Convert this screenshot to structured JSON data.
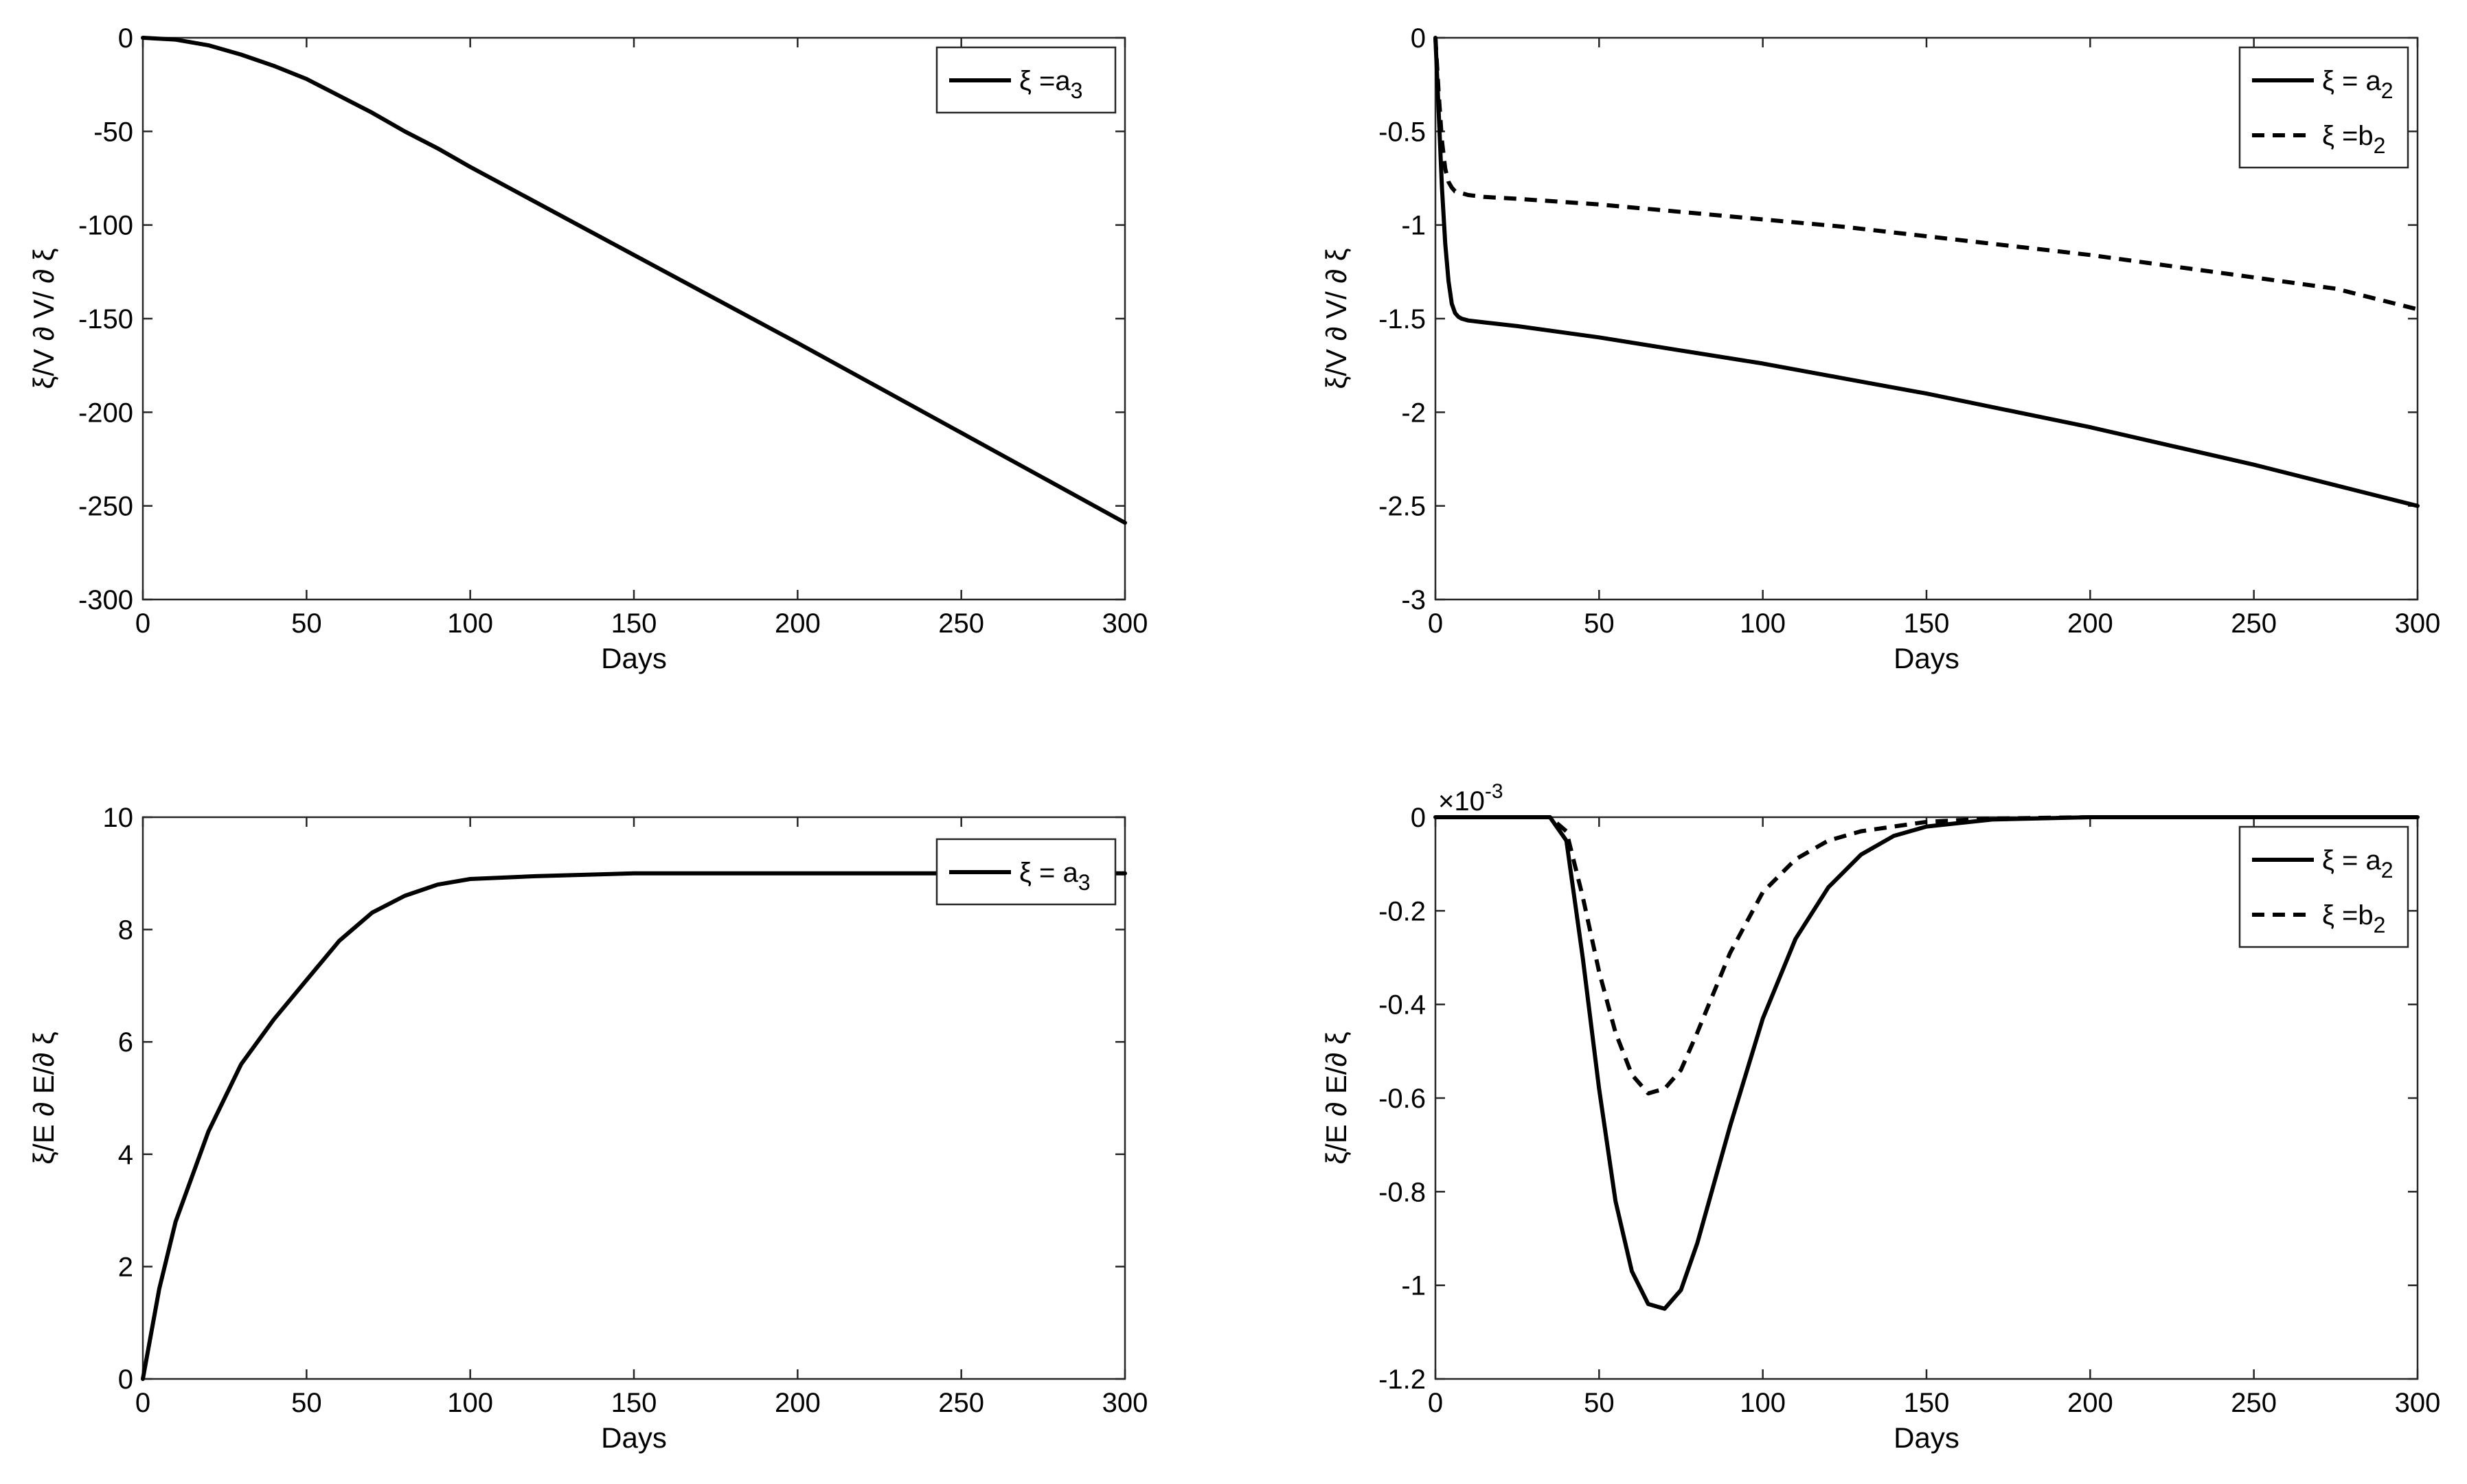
{
  "chart_data": [
    {
      "type": "line",
      "panel": "top-left",
      "title": "",
      "xlabel": "Days",
      "ylabel": "ξ/V ∂ V/ ∂ ξ",
      "xlim": [
        0,
        300
      ],
      "ylim": [
        -300,
        0
      ],
      "xticks": [
        0,
        50,
        100,
        150,
        200,
        250,
        300
      ],
      "yticks": [
        -300,
        -250,
        -200,
        -150,
        -100,
        -50,
        0
      ],
      "legend_position": "top-right",
      "series": [
        {
          "name": "ξ =a3",
          "legend_sym": "ξ =a",
          "legend_sub": "3",
          "style": "solid",
          "x": [
            0,
            10,
            20,
            30,
            40,
            50,
            60,
            70,
            80,
            90,
            100,
            150,
            200,
            250,
            300
          ],
          "y": [
            0,
            -1,
            -4,
            -9,
            -15,
            -22,
            -31,
            -40,
            -50,
            -59,
            -69,
            -116,
            -163,
            -211,
            -259
          ]
        }
      ]
    },
    {
      "type": "line",
      "panel": "top-right",
      "title": "",
      "xlabel": "Days",
      "ylabel": "ξ/V ∂ V/ ∂ ξ",
      "xlim": [
        0,
        300
      ],
      "ylim": [
        -3,
        0
      ],
      "xticks": [
        0,
        50,
        100,
        150,
        200,
        250,
        300
      ],
      "yticks": [
        -3,
        -2.5,
        -2,
        -1.5,
        -1,
        -0.5,
        0
      ],
      "legend_position": "top-right",
      "series": [
        {
          "name": "ξ = a2",
          "legend_sym": "ξ = a",
          "legend_sub": "2",
          "style": "solid",
          "x": [
            0,
            1,
            2,
            3,
            4,
            5,
            6,
            7,
            8,
            10,
            15,
            25,
            50,
            75,
            100,
            125,
            150,
            175,
            200,
            225,
            250,
            275,
            300
          ],
          "y": [
            0,
            -0.4,
            -0.8,
            -1.1,
            -1.3,
            -1.42,
            -1.47,
            -1.49,
            -1.5,
            -1.51,
            -1.52,
            -1.54,
            -1.6,
            -1.67,
            -1.74,
            -1.82,
            -1.9,
            -1.99,
            -2.08,
            -2.18,
            -2.28,
            -2.39,
            -2.5
          ]
        },
        {
          "name": "ξ =b2",
          "legend_sym": "ξ =b",
          "legend_sub": "2",
          "style": "dashed",
          "x": [
            0,
            1,
            2,
            3,
            4,
            5,
            6,
            8,
            10,
            15,
            25,
            50,
            75,
            100,
            125,
            150,
            175,
            200,
            225,
            250,
            275,
            300
          ],
          "y": [
            0,
            -0.3,
            -0.55,
            -0.7,
            -0.77,
            -0.8,
            -0.82,
            -0.83,
            -0.84,
            -0.85,
            -0.86,
            -0.89,
            -0.93,
            -0.97,
            -1.01,
            -1.06,
            -1.11,
            -1.16,
            -1.22,
            -1.28,
            -1.34,
            -1.45
          ]
        }
      ]
    },
    {
      "type": "line",
      "panel": "bottom-left",
      "title": "",
      "xlabel": "Days",
      "ylabel": "ξ/E ∂ E/∂ ξ",
      "xlim": [
        0,
        300
      ],
      "ylim": [
        0,
        10
      ],
      "xticks": [
        0,
        50,
        100,
        150,
        200,
        250,
        300
      ],
      "yticks": [
        0,
        2,
        4,
        6,
        8,
        10
      ],
      "legend_position": "top-right",
      "series": [
        {
          "name": "ξ = a3",
          "legend_sym": "ξ = a",
          "legend_sub": "3",
          "style": "solid",
          "x": [
            0,
            5,
            10,
            20,
            30,
            40,
            50,
            60,
            70,
            80,
            90,
            100,
            120,
            150,
            200,
            250,
            300
          ],
          "y": [
            0,
            1.6,
            2.8,
            4.4,
            5.6,
            6.4,
            7.1,
            7.8,
            8.3,
            8.6,
            8.8,
            8.9,
            8.95,
            9.0,
            9.0,
            9.0,
            9.0
          ]
        }
      ]
    },
    {
      "type": "line",
      "panel": "bottom-right",
      "title": "",
      "xlabel": "Days",
      "ylabel": "ξ/E ∂ E/∂ ξ",
      "xlim": [
        0,
        300
      ],
      "ylim": [
        -1.2,
        0
      ],
      "xticks": [
        0,
        50,
        100,
        150,
        200,
        250,
        300
      ],
      "yticks": [
        -1.2,
        -1,
        -0.8,
        -0.6,
        -0.4,
        -0.2,
        0
      ],
      "y_exponent_base": "×10",
      "y_exponent_power": "-3",
      "legend_position": "top-right",
      "series": [
        {
          "name": "ξ = a2",
          "legend_sym": "ξ = a",
          "legend_sub": "2",
          "style": "solid",
          "x": [
            0,
            30,
            35,
            40,
            45,
            50,
            55,
            60,
            65,
            70,
            75,
            80,
            90,
            100,
            110,
            120,
            130,
            140,
            150,
            170,
            200,
            250,
            300
          ],
          "y": [
            0,
            0,
            0,
            -0.05,
            -0.3,
            -0.58,
            -0.82,
            -0.97,
            -1.04,
            -1.05,
            -1.01,
            -0.91,
            -0.66,
            -0.43,
            -0.26,
            -0.15,
            -0.08,
            -0.04,
            -0.02,
            -0.005,
            0,
            0,
            0
          ]
        },
        {
          "name": "ξ =b2",
          "legend_sym": "ξ =b",
          "legend_sub": "2",
          "style": "dashed",
          "x": [
            0,
            30,
            35,
            40,
            45,
            50,
            55,
            60,
            65,
            70,
            75,
            80,
            90,
            100,
            110,
            120,
            130,
            140,
            150,
            170,
            200,
            250,
            300
          ],
          "y": [
            0,
            0,
            0,
            -0.03,
            -0.17,
            -0.33,
            -0.46,
            -0.55,
            -0.59,
            -0.58,
            -0.54,
            -0.46,
            -0.29,
            -0.16,
            -0.09,
            -0.05,
            -0.03,
            -0.02,
            -0.01,
            -0.003,
            0,
            0,
            0
          ]
        }
      ]
    }
  ]
}
